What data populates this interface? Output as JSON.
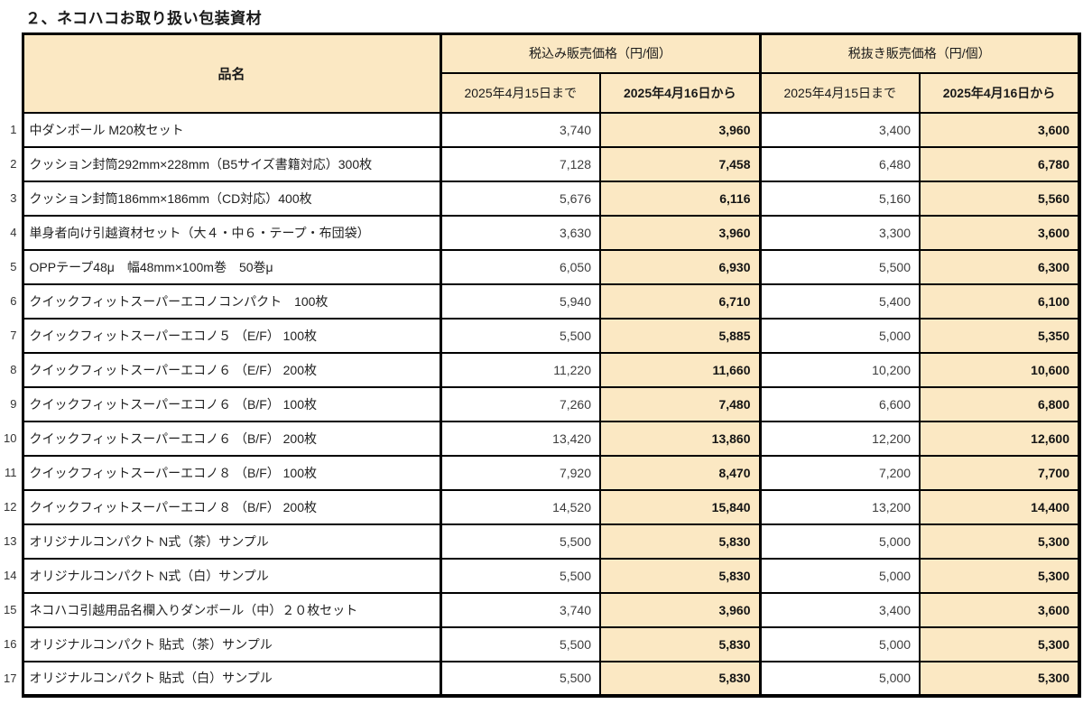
{
  "title": "２、ネコハコお取り扱い包装資材",
  "colors": {
    "header_bg": "#FBE8C3",
    "highlight_bg": "#FBE8C3",
    "border": "#000000"
  },
  "table": {
    "col_product": "品名",
    "group_tax_included": "税込み販売価格（円/個）",
    "group_tax_excluded": "税抜き販売価格（円/個）",
    "sub_until": "2025年4月15日まで",
    "sub_from": "2025年4月16日から",
    "rows": [
      {
        "no": "1",
        "name": "中ダンボール M20枚セット",
        "incl_until": "3,740",
        "incl_from": "3,960",
        "excl_until": "3,400",
        "excl_from": "3,600"
      },
      {
        "no": "2",
        "name": "クッション封筒292mm×228mm（B5サイズ書籍対応）300枚",
        "incl_until": "7,128",
        "incl_from": "7,458",
        "excl_until": "6,480",
        "excl_from": "6,780"
      },
      {
        "no": "3",
        "name": "クッション封筒186mm×186mm（CD対応）400枚",
        "incl_until": "5,676",
        "incl_from": "6,116",
        "excl_until": "5,160",
        "excl_from": "5,560"
      },
      {
        "no": "4",
        "name": "単身者向け引越資材セット（大４・中６・テープ・布団袋）",
        "incl_until": "3,630",
        "incl_from": "3,960",
        "excl_until": "3,300",
        "excl_from": "3,600"
      },
      {
        "no": "5",
        "name": "OPPテープ48μ　幅48mm×100m巻　50巻μ",
        "incl_until": "6,050",
        "incl_from": "6,930",
        "excl_until": "5,500",
        "excl_from": "6,300"
      },
      {
        "no": "6",
        "name": "クイックフィットスーパーエコノコンパクト　100枚",
        "incl_until": "5,940",
        "incl_from": "6,710",
        "excl_until": "5,400",
        "excl_from": "6,100"
      },
      {
        "no": "7",
        "name": "クイックフィットスーパーエコノ５ （E/F） 100枚",
        "incl_until": "5,500",
        "incl_from": "5,885",
        "excl_until": "5,000",
        "excl_from": "5,350"
      },
      {
        "no": "8",
        "name": "クイックフィットスーパーエコノ６ （E/F） 200枚",
        "incl_until": "11,220",
        "incl_from": "11,660",
        "excl_until": "10,200",
        "excl_from": "10,600"
      },
      {
        "no": "9",
        "name": "クイックフィットスーパーエコノ６ （B/F） 100枚",
        "incl_until": "7,260",
        "incl_from": "7,480",
        "excl_until": "6,600",
        "excl_from": "6,800"
      },
      {
        "no": "10",
        "name": "クイックフィットスーパーエコノ６ （B/F） 200枚",
        "incl_until": "13,420",
        "incl_from": "13,860",
        "excl_until": "12,200",
        "excl_from": "12,600"
      },
      {
        "no": "11",
        "name": "クイックフィットスーパーエコノ８ （B/F） 100枚",
        "incl_until": "7,920",
        "incl_from": "8,470",
        "excl_until": "7,200",
        "excl_from": "7,700"
      },
      {
        "no": "12",
        "name": "クイックフィットスーパーエコノ８ （B/F） 200枚",
        "incl_until": "14,520",
        "incl_from": "15,840",
        "excl_until": "13,200",
        "excl_from": "14,400"
      },
      {
        "no": "13",
        "name": "オリジナルコンパクト N式（茶）サンプル",
        "incl_until": "5,500",
        "incl_from": "5,830",
        "excl_until": "5,000",
        "excl_from": "5,300"
      },
      {
        "no": "14",
        "name": "オリジナルコンパクト N式（白）サンプル",
        "incl_until": "5,500",
        "incl_from": "5,830",
        "excl_until": "5,000",
        "excl_from": "5,300"
      },
      {
        "no": "15",
        "name": "ネコハコ引越用品名欄入りダンボール（中）２０枚セット",
        "incl_until": "3,740",
        "incl_from": "3,960",
        "excl_until": "3,400",
        "excl_from": "3,600"
      },
      {
        "no": "16",
        "name": "オリジナルコンパクト 貼式（茶）サンプル",
        "incl_until": "5,500",
        "incl_from": "5,830",
        "excl_until": "5,000",
        "excl_from": "5,300"
      },
      {
        "no": "17",
        "name": "オリジナルコンパクト 貼式（白）サンプル",
        "incl_until": "5,500",
        "incl_from": "5,830",
        "excl_until": "5,000",
        "excl_from": "5,300"
      }
    ]
  }
}
